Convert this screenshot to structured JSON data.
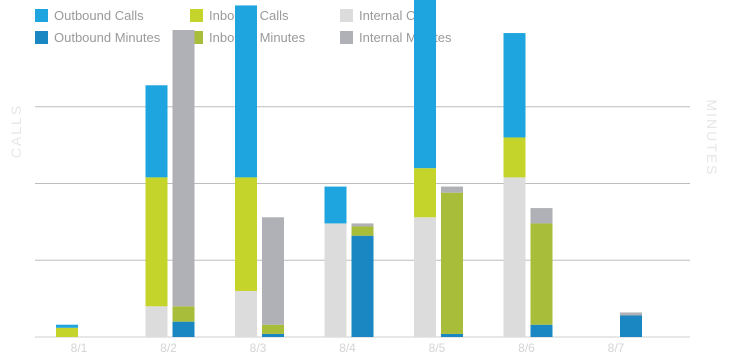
{
  "chart_data": {
    "type": "bar",
    "stacked": true,
    "title": "",
    "ylabel_left": "CALLS",
    "ylabel_right": "MINUTES",
    "categories": [
      "8/1",
      "8/2",
      "8/3",
      "8/4",
      "8/5",
      "8/6",
      "8/7"
    ],
    "grid": true,
    "legend_position": "top-left",
    "stacks": [
      {
        "id": "calls",
        "axis": "left",
        "ylim": [
          0,
          100
        ],
        "series": [
          {
            "name": "Internal Calls",
            "color": "#dcdcdc",
            "values": [
              0,
              10,
              15,
              37,
              39,
              52,
              0
            ]
          },
          {
            "name": "Inbound Calls",
            "color": "#c5d42a",
            "values": [
              3,
              42,
              37,
              0,
              16,
              13,
              0
            ]
          },
          {
            "name": "Outbound Calls",
            "color": "#1ea4de",
            "values": [
              1,
              30,
              56,
              12,
              59,
              34,
              0
            ]
          }
        ]
      },
      {
        "id": "minutes",
        "axis": "right",
        "ylim": [
          0,
          100
        ],
        "series": [
          {
            "name": "Outbound Minutes",
            "color": "#1a87c3",
            "values": [
              0,
              5,
              1,
              33,
              1,
              4,
              7
            ]
          },
          {
            "name": "Inbound Minutes",
            "color": "#a8bd3a",
            "values": [
              0,
              5,
              3,
              3,
              46,
              33,
              0
            ]
          },
          {
            "name": "Internal Minutes",
            "color": "#b0b1b6",
            "values": [
              0,
              90,
              35,
              1,
              2,
              5,
              1
            ]
          }
        ]
      }
    ],
    "legend": [
      {
        "name": "Outbound Calls",
        "color": "#1ea4de"
      },
      {
        "name": "Inbound Calls",
        "color": "#c5d42a"
      },
      {
        "name": "Internal Calls",
        "color": "#dcdcdc"
      },
      {
        "name": "Outbound Minutes",
        "color": "#1a87c3"
      },
      {
        "name": "Inbound Minutes",
        "color": "#a8bd3a"
      },
      {
        "name": "Internal Minutes",
        "color": "#b0b1b6"
      }
    ]
  }
}
